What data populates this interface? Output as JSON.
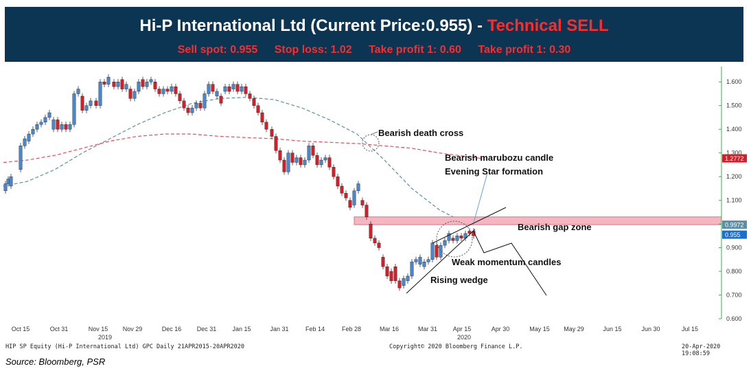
{
  "header": {
    "title_main": "Hi-P International Ltd (Current Price:0.955) - ",
    "title_signal": "Technical SELL",
    "sell_spot": "Sell spot: 0.955",
    "stop_loss": "Stop loss: 1.02",
    "take_profit_1": "Take profit 1: 0.60",
    "take_profit_2": "Take profit 1: 0.30"
  },
  "colors": {
    "banner": "#0b3552",
    "signal_red": "#ff2b2b",
    "bull_candle": "#4a86c8",
    "bear_candle": "#d1202a",
    "ma_fast": "#5b8fa8",
    "ma_slow": "#e0505a",
    "gap_zone": "#f4b6c0",
    "y_axis": "#2fb34a"
  },
  "footer": {
    "left": "HIP SP Equity (Hi-P International Ltd) GPC  Daily 21APR2015-20APR2020",
    "mid": "Copyright© 2020 Bloomberg Finance L.P.",
    "right": "20-Apr-2020 19:08:59",
    "source": "Source: Bloomberg, PSR"
  },
  "chart_data": {
    "type": "candlestick",
    "ylim": [
      0.6,
      1.65
    ],
    "y_ticks": [
      "1.600",
      "1.500",
      "1.400",
      "1.300",
      "1.200",
      "1.100",
      "1.000",
      "0.900",
      "0.800",
      "0.700",
      "0.600"
    ],
    "x_ticks": [
      "Oct 15",
      "Oct 31",
      "Nov 15",
      "Nov 29",
      "Dec 16",
      "Dec 31",
      "Jan 15",
      "Jan 31",
      "Feb 14",
      "Feb 28",
      "Mar 16",
      "Mar 31",
      "Apr 15",
      "Apr 30",
      "May 15",
      "May 29",
      "Jun 15",
      "Jun 30",
      "Jul 15"
    ],
    "year_labels": [
      {
        "after": "Nov 15",
        "text": "2019"
      },
      {
        "after": "Apr 15",
        "text": "2020"
      }
    ],
    "price_tags": [
      {
        "label": "1.2772",
        "value": 1.2772,
        "color": "#d1202a"
      },
      {
        "label": "0.9972",
        "value": 0.9972,
        "color": "#5b8fa8"
      },
      {
        "label": "0.955",
        "value": 0.955,
        "color": "#1a6fd0"
      }
    ],
    "candles": [
      {
        "x": 8,
        "o": 1.14,
        "c": 1.17
      },
      {
        "x": 12,
        "o": 1.17,
        "c": 1.19
      },
      {
        "x": 16,
        "o": 1.16,
        "c": 1.2
      },
      {
        "x": 30,
        "o": 1.23,
        "c": 1.33
      },
      {
        "x": 36,
        "o": 1.33,
        "c": 1.36
      },
      {
        "x": 42,
        "o": 1.35,
        "c": 1.38
      },
      {
        "x": 48,
        "o": 1.38,
        "c": 1.4
      },
      {
        "x": 54,
        "o": 1.4,
        "c": 1.42
      },
      {
        "x": 60,
        "o": 1.42,
        "c": 1.43
      },
      {
        "x": 66,
        "o": 1.43,
        "c": 1.45
      },
      {
        "x": 72,
        "o": 1.45,
        "c": 1.47
      },
      {
        "x": 78,
        "o": 1.4,
        "c": 1.44
      },
      {
        "x": 84,
        "o": 1.44,
        "c": 1.4
      },
      {
        "x": 90,
        "o": 1.4,
        "c": 1.42
      },
      {
        "x": 96,
        "o": 1.42,
        "c": 1.4
      },
      {
        "x": 102,
        "o": 1.4,
        "c": 1.42
      },
      {
        "x": 108,
        "o": 1.42,
        "c": 1.55
      },
      {
        "x": 114,
        "o": 1.55,
        "c": 1.57
      },
      {
        "x": 120,
        "o": 1.54,
        "c": 1.48
      },
      {
        "x": 126,
        "o": 1.48,
        "c": 1.5
      },
      {
        "x": 132,
        "o": 1.5,
        "c": 1.52
      },
      {
        "x": 140,
        "o": 1.52,
        "c": 1.5
      },
      {
        "x": 146,
        "o": 1.5,
        "c": 1.6
      },
      {
        "x": 152,
        "o": 1.6,
        "c": 1.59
      },
      {
        "x": 158,
        "o": 1.59,
        "c": 1.62
      },
      {
        "x": 166,
        "o": 1.6,
        "c": 1.58
      },
      {
        "x": 172,
        "o": 1.58,
        "c": 1.6
      },
      {
        "x": 178,
        "o": 1.61,
        "c": 1.57
      },
      {
        "x": 184,
        "o": 1.57,
        "c": 1.59
      },
      {
        "x": 190,
        "o": 1.57,
        "c": 1.53
      },
      {
        "x": 196,
        "o": 1.53,
        "c": 1.56
      },
      {
        "x": 202,
        "o": 1.56,
        "c": 1.6
      },
      {
        "x": 208,
        "o": 1.61,
        "c": 1.58
      },
      {
        "x": 214,
        "o": 1.58,
        "c": 1.6
      },
      {
        "x": 220,
        "o": 1.6,
        "c": 1.61
      },
      {
        "x": 226,
        "o": 1.6,
        "c": 1.57
      },
      {
        "x": 232,
        "o": 1.57,
        "c": 1.55
      },
      {
        "x": 238,
        "o": 1.55,
        "c": 1.57
      },
      {
        "x": 244,
        "o": 1.57,
        "c": 1.56
      },
      {
        "x": 250,
        "o": 1.56,
        "c": 1.58
      },
      {
        "x": 256,
        "o": 1.58,
        "c": 1.55
      },
      {
        "x": 262,
        "o": 1.55,
        "c": 1.52
      },
      {
        "x": 268,
        "o": 1.52,
        "c": 1.49
      },
      {
        "x": 274,
        "o": 1.49,
        "c": 1.47
      },
      {
        "x": 280,
        "o": 1.47,
        "c": 1.49
      },
      {
        "x": 286,
        "o": 1.49,
        "c": 1.51
      },
      {
        "x": 292,
        "o": 1.51,
        "c": 1.49
      },
      {
        "x": 298,
        "o": 1.49,
        "c": 1.55
      },
      {
        "x": 304,
        "o": 1.55,
        "c": 1.59
      },
      {
        "x": 310,
        "o": 1.59,
        "c": 1.56
      },
      {
        "x": 316,
        "o": 1.54,
        "c": 1.56
      },
      {
        "x": 322,
        "o": 1.54,
        "c": 1.51
      },
      {
        "x": 328,
        "o": 1.56,
        "c": 1.58
      },
      {
        "x": 334,
        "o": 1.58,
        "c": 1.56
      },
      {
        "x": 340,
        "o": 1.57,
        "c": 1.59
      },
      {
        "x": 346,
        "o": 1.59,
        "c": 1.56
      },
      {
        "x": 352,
        "o": 1.56,
        "c": 1.58
      },
      {
        "x": 358,
        "o": 1.58,
        "c": 1.55
      },
      {
        "x": 364,
        "o": 1.55,
        "c": 1.53
      },
      {
        "x": 370,
        "o": 1.53,
        "c": 1.5
      },
      {
        "x": 376,
        "o": 1.5,
        "c": 1.47
      },
      {
        "x": 382,
        "o": 1.47,
        "c": 1.43
      },
      {
        "x": 388,
        "o": 1.43,
        "c": 1.4
      },
      {
        "x": 396,
        "o": 1.4,
        "c": 1.37
      },
      {
        "x": 402,
        "o": 1.37,
        "c": 1.31
      },
      {
        "x": 408,
        "o": 1.31,
        "c": 1.27
      },
      {
        "x": 414,
        "o": 1.27,
        "c": 1.22
      },
      {
        "x": 420,
        "o": 1.22,
        "c": 1.3
      },
      {
        "x": 426,
        "o": 1.3,
        "c": 1.26
      },
      {
        "x": 432,
        "o": 1.26,
        "c": 1.28
      },
      {
        "x": 438,
        "o": 1.28,
        "c": 1.25
      },
      {
        "x": 444,
        "o": 1.25,
        "c": 1.27
      },
      {
        "x": 450,
        "o": 1.27,
        "c": 1.33
      },
      {
        "x": 456,
        "o": 1.33,
        "c": 1.29
      },
      {
        "x": 462,
        "o": 1.29,
        "c": 1.25
      },
      {
        "x": 468,
        "o": 1.25,
        "c": 1.27
      },
      {
        "x": 474,
        "o": 1.27,
        "c": 1.28
      },
      {
        "x": 480,
        "o": 1.28,
        "c": 1.24
      },
      {
        "x": 486,
        "o": 1.24,
        "c": 1.2
      },
      {
        "x": 492,
        "o": 1.2,
        "c": 1.16
      },
      {
        "x": 498,
        "o": 1.16,
        "c": 1.13
      },
      {
        "x": 504,
        "o": 1.13,
        "c": 1.11
      },
      {
        "x": 510,
        "o": 1.1,
        "c": 1.07
      },
      {
        "x": 516,
        "o": 1.08,
        "c": 1.14
      },
      {
        "x": 522,
        "o": 1.14,
        "c": 1.17
      },
      {
        "x": 528,
        "o": 1.1,
        "c": 1.08
      },
      {
        "x": 534,
        "o": 1.08,
        "c": 1.03
      },
      {
        "x": 540,
        "o": 1.0,
        "c": 0.94
      },
      {
        "x": 546,
        "o": 0.94,
        "c": 0.92
      },
      {
        "x": 552,
        "o": 0.92,
        "c": 0.9
      },
      {
        "x": 558,
        "o": 0.86,
        "c": 0.82
      },
      {
        "x": 564,
        "o": 0.82,
        "c": 0.78
      },
      {
        "x": 570,
        "o": 0.8,
        "c": 0.76
      },
      {
        "x": 576,
        "o": 0.82,
        "c": 0.76
      },
      {
        "x": 582,
        "o": 0.76,
        "c": 0.73
      },
      {
        "x": 588,
        "o": 0.74,
        "c": 0.77
      },
      {
        "x": 594,
        "o": 0.76,
        "c": 0.78
      },
      {
        "x": 600,
        "o": 0.78,
        "c": 0.84
      },
      {
        "x": 606,
        "o": 0.84,
        "c": 0.85
      },
      {
        "x": 612,
        "o": 0.83,
        "c": 0.86
      },
      {
        "x": 618,
        "o": 0.82,
        "c": 0.84
      },
      {
        "x": 624,
        "o": 0.84,
        "c": 0.85
      },
      {
        "x": 630,
        "o": 0.85,
        "c": 0.92
      },
      {
        "x": 636,
        "o": 0.91,
        "c": 0.86
      },
      {
        "x": 642,
        "o": 0.86,
        "c": 0.91
      },
      {
        "x": 648,
        "o": 0.91,
        "c": 0.93
      },
      {
        "x": 654,
        "o": 0.93,
        "c": 0.96
      },
      {
        "x": 660,
        "o": 0.94,
        "c": 0.93
      },
      {
        "x": 666,
        "o": 0.93,
        "c": 0.95
      },
      {
        "x": 672,
        "o": 0.95,
        "c": 0.94
      },
      {
        "x": 678,
        "o": 0.94,
        "c": 0.96
      },
      {
        "x": 684,
        "o": 0.97,
        "c": 0.96
      },
      {
        "x": 690,
        "o": 0.97,
        "c": 0.95
      }
    ],
    "ma_fast": [
      [
        5,
        1.16
      ],
      [
        40,
        1.18
      ],
      [
        80,
        1.23
      ],
      [
        120,
        1.3
      ],
      [
        160,
        1.36
      ],
      [
        200,
        1.42
      ],
      [
        240,
        1.47
      ],
      [
        280,
        1.51
      ],
      [
        320,
        1.53
      ],
      [
        360,
        1.535
      ],
      [
        400,
        1.525
      ],
      [
        440,
        1.49
      ],
      [
        480,
        1.44
      ],
      [
        520,
        1.38
      ],
      [
        560,
        1.27
      ],
      [
        600,
        1.15
      ],
      [
        640,
        1.06
      ],
      [
        680,
        1.0
      ],
      [
        690,
        0.9972
      ]
    ],
    "ma_slow": [
      [
        5,
        1.26
      ],
      [
        40,
        1.27
      ],
      [
        80,
        1.29
      ],
      [
        120,
        1.32
      ],
      [
        160,
        1.35
      ],
      [
        200,
        1.37
      ],
      [
        240,
        1.38
      ],
      [
        280,
        1.38
      ],
      [
        320,
        1.37
      ],
      [
        360,
        1.365
      ],
      [
        400,
        1.36
      ],
      [
        440,
        1.35
      ],
      [
        480,
        1.345
      ],
      [
        520,
        1.34
      ],
      [
        560,
        1.33
      ],
      [
        600,
        1.32
      ],
      [
        640,
        1.3
      ],
      [
        680,
        1.285
      ],
      [
        700,
        1.2772
      ]
    ],
    "annotations": [
      {
        "text": "Bearish death cross"
      },
      {
        "text": "Bearish marubozu candle"
      },
      {
        "text": "Evening Star formation"
      },
      {
        "text": "Bearish gap zone"
      },
      {
        "text": "Weak momentum candles"
      },
      {
        "text": "Rising wedge"
      }
    ],
    "gap_zone": [
      0.9972,
      1.03
    ]
  }
}
